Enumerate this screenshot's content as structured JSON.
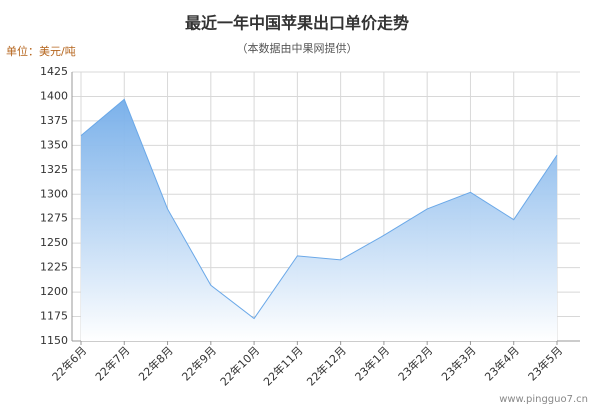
{
  "chart_data": {
    "type": "area",
    "title": "最近一年中国苹果出口单价走势",
    "subtitle": "（本数据由中果网提供）",
    "unit_label": "单位：美元/吨",
    "watermark": "www.pingguo7.cn",
    "categories": [
      "22年6月",
      "22年7月",
      "22年8月",
      "22年9月",
      "22年10月",
      "22年11月",
      "22年12月",
      "23年1月",
      "23年2月",
      "23年3月",
      "23年4月",
      "23年5月"
    ],
    "values": [
      1360,
      1397,
      1285,
      1207,
      1173,
      1237,
      1233,
      1258,
      1285,
      1302,
      1274,
      1340
    ],
    "color": "#6aa8e8",
    "ylim": [
      1150,
      1425
    ],
    "yticks": [
      1150,
      1175,
      1200,
      1225,
      1250,
      1275,
      1300,
      1325,
      1350,
      1375,
      1400,
      1425
    ],
    "grid": true
  }
}
